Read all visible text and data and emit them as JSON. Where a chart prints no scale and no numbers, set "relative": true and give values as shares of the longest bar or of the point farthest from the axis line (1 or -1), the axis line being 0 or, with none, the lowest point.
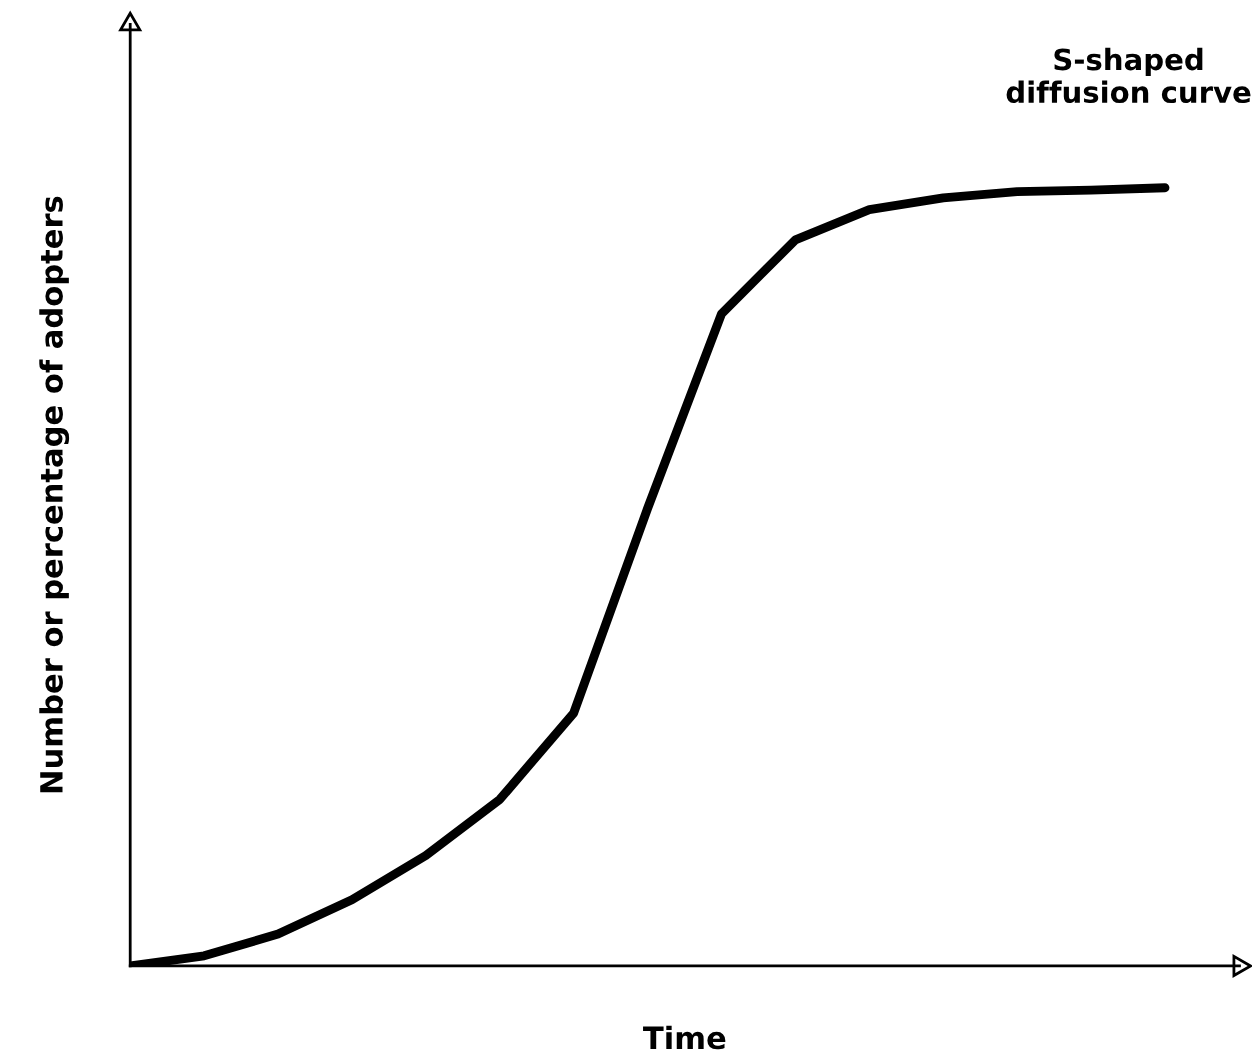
{
  "chart_data": {
    "type": "line",
    "relative": true,
    "xlabel": "Time",
    "ylabel": "Number or percentage of adopters",
    "annotations": [
      "S-shaped\ndiffusion curve"
    ],
    "categories": [
      null,
      null,
      null,
      null,
      null,
      null,
      null,
      null,
      null,
      null,
      null,
      null,
      null,
      null,
      null
    ],
    "series": [
      {
        "color": "#000000",
        "values": [
          0,
          0.013,
          0.041,
          0.085,
          0.142,
          0.214,
          0.325,
          0.588,
          0.838,
          0.933,
          0.972,
          0.987,
          0.995,
          0.997,
          1
        ]
      }
    ],
    "marker": "none",
    "line_style": "solid",
    "grid": false,
    "legend": false
  }
}
